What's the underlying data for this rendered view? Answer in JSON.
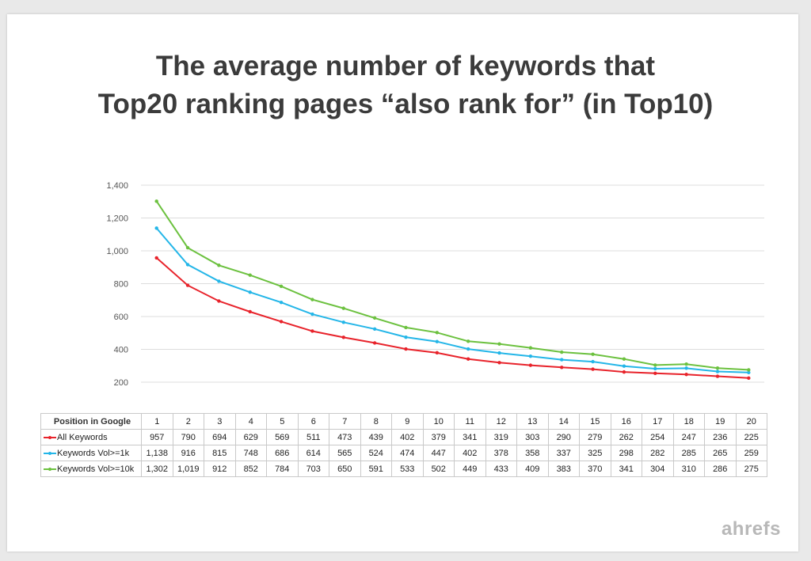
{
  "brand": "ahrefs",
  "chart_data": {
    "type": "line",
    "title": [
      "The average number of keywords that",
      "Top20 ranking pages “also rank for” (in Top10)"
    ],
    "table_header": "Position in Google",
    "x": [
      "1",
      "2",
      "3",
      "4",
      "5",
      "6",
      "7",
      "8",
      "9",
      "10",
      "11",
      "12",
      "13",
      "14",
      "15",
      "16",
      "17",
      "18",
      "19",
      "20"
    ],
    "ylim": [
      200,
      1400
    ],
    "yticks": [
      200,
      400,
      600,
      800,
      1000,
      1200,
      1400
    ],
    "ytick_labels": [
      "200",
      "400",
      "600",
      "800",
      "1,000",
      "1,200",
      "1,400"
    ],
    "grid": true,
    "series": [
      {
        "name": "All Keywords",
        "color": "#e8232b",
        "values": [
          957,
          790,
          694,
          629,
          569,
          511,
          473,
          439,
          402,
          379,
          341,
          319,
          303,
          290,
          279,
          262,
          254,
          247,
          236,
          225
        ],
        "labels": [
          "957",
          "790",
          "694",
          "629",
          "569",
          "511",
          "473",
          "439",
          "402",
          "379",
          "341",
          "319",
          "303",
          "290",
          "279",
          "262",
          "254",
          "247",
          "236",
          "225"
        ]
      },
      {
        "name": "Keywords Vol>=1k",
        "color": "#24b6e8",
        "values": [
          1138,
          916,
          815,
          748,
          686,
          614,
          565,
          524,
          474,
          447,
          402,
          378,
          358,
          337,
          325,
          298,
          282,
          285,
          265,
          259
        ],
        "labels": [
          "1,138",
          "916",
          "815",
          "748",
          "686",
          "614",
          "565",
          "524",
          "474",
          "447",
          "402",
          "378",
          "358",
          "337",
          "325",
          "298",
          "282",
          "285",
          "265",
          "259"
        ]
      },
      {
        "name": "Keywords Vol>=10k",
        "color": "#6cc13f",
        "values": [
          1302,
          1019,
          912,
          852,
          784,
          703,
          650,
          591,
          533,
          502,
          449,
          433,
          409,
          383,
          370,
          341,
          304,
          310,
          286,
          275
        ],
        "labels": [
          "1,302",
          "1,019",
          "912",
          "852",
          "784",
          "703",
          "650",
          "591",
          "533",
          "502",
          "449",
          "433",
          "409",
          "383",
          "370",
          "341",
          "304",
          "310",
          "286",
          "275"
        ]
      }
    ]
  }
}
